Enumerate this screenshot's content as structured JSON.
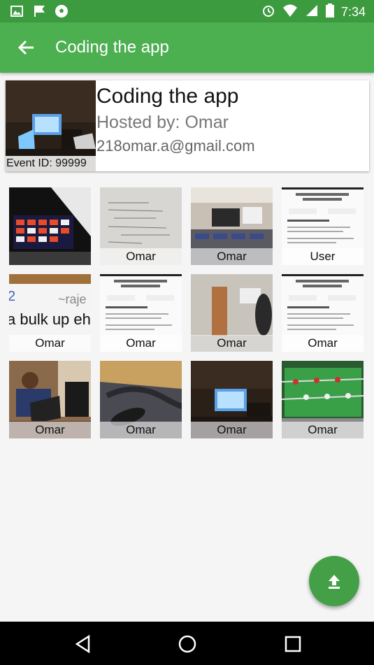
{
  "status_bar": {
    "time": "7:34",
    "left_icons": [
      "image-icon",
      "flag-icon",
      "soccer-ball-icon"
    ],
    "right_icons": [
      "alarm-icon",
      "wifi-icon",
      "signal-icon",
      "battery-icon"
    ]
  },
  "app_bar": {
    "title": "Coding the app",
    "back_icon": "arrow-back-icon"
  },
  "event": {
    "title": "Coding the app",
    "host": "Hosted by: Omar",
    "email": "218omar.a@gmail.com",
    "event_id": "Event ID: 99999"
  },
  "photos": [
    {
      "label": "",
      "kind": "board"
    },
    {
      "label": "Omar",
      "kind": "paper"
    },
    {
      "label": "Omar",
      "kind": "classroom"
    },
    {
      "label": "User",
      "kind": "doc"
    },
    {
      "label": "Omar",
      "kind": "text-image"
    },
    {
      "label": "Omar",
      "kind": "doc"
    },
    {
      "label": "Omar",
      "kind": "hallway"
    },
    {
      "label": "Omar",
      "kind": "doc"
    },
    {
      "label": "Omar",
      "kind": "person-laptop"
    },
    {
      "label": "Omar",
      "kind": "bed"
    },
    {
      "label": "Omar",
      "kind": "desk"
    },
    {
      "label": "Omar",
      "kind": "foosball"
    }
  ],
  "text_image_text": {
    "line1": "~raje",
    "line2": "a bulk up eh",
    "mark": "2"
  },
  "fab": {
    "icon": "upload-icon"
  },
  "colors": {
    "primary": "#4caf50",
    "primary_dark": "#3d9b3f",
    "fab": "#43a047"
  }
}
